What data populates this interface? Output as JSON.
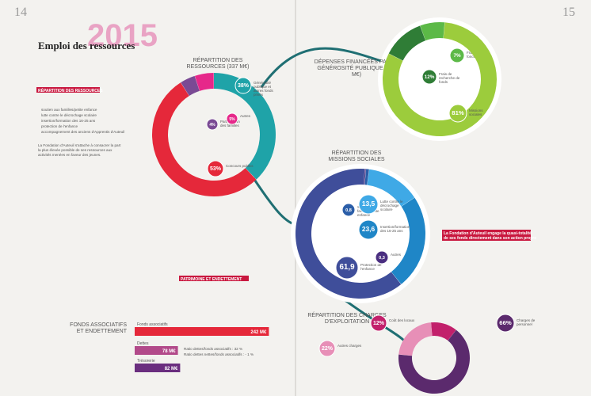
{
  "pages": [
    "14",
    "15"
  ],
  "header": {
    "year": "2015",
    "title": "Emploi des ressources"
  },
  "left_column": {
    "heading": "RÉPARTITION DES RESSOURCES",
    "bullets": [
      "soutien aux familles/petite enfance",
      "lutte contre le décrochage scolaire",
      "insertion/formation des 16-25 ans",
      "protection de l'enfance",
      "accompagnement des anciens d'Apprentis d'Auteuil"
    ],
    "paragraph": "La Fondation d'Auteuil s'attache à consacrer la part la plus élevée possible de ses ressources aux activités menées en faveur des jeunes."
  },
  "right_column": {
    "heading": "La Fondation d'Auteuil engage la quasi-totalité de ses fonds directement dans son action propre"
  },
  "patrimoine": {
    "heading": "PATRIMOINE ET ENDETTEMENT"
  },
  "ressources": {
    "title": "RÉPARTITION DES RESSOURCES (337 M€)",
    "segments": [
      {
        "label": "Générosité publique et autres fonds privés",
        "value": 38,
        "value_label": "38%",
        "color": "#1fa3a8"
      },
      {
        "label": "Concours publics",
        "value": 53,
        "value_label": "53%",
        "color": "#e5283a"
      },
      {
        "label": "Participation des familles",
        "value": 4,
        "value_label": "4%",
        "color": "#7a4a94"
      },
      {
        "label": "Autres",
        "value": 5,
        "value_label": "5%",
        "color": "#e6288a"
      }
    ]
  },
  "generosite": {
    "title": "DÉPENSES FINANCÉES PAR LA GÉNÉROSITÉ PUBLIQUE (121 M€)",
    "segments": [
      {
        "label": "Frais de fonctionnement",
        "value": 7,
        "value_label": "7%",
        "color": "#5cb947"
      },
      {
        "label": "Missions sociales",
        "value": 81,
        "value_label": "81%",
        "color": "#9ccc3c"
      },
      {
        "label": "Frais de recherche de fonds",
        "value": 12,
        "value_label": "12%",
        "color": "#2f7d36"
      }
    ]
  },
  "missions": {
    "title": "RÉPARTITION DES MISSIONS SOCIALES",
    "segments": [
      {
        "label": "Soutien aux familles/petite enfance",
        "value": 0.8,
        "value_label": "0,8",
        "color": "#2b5ea8"
      },
      {
        "label": "Lutte contre le décrochage scolaire",
        "value": 13.5,
        "value_label": "13,5",
        "color": "#3fa9e6"
      },
      {
        "label": "Insertion/formation des 16-25 ans",
        "value": 23.6,
        "value_label": "23,6",
        "color": "#1f86c7"
      },
      {
        "label": "Protection de l'enfance",
        "value": 61.9,
        "value_label": "61,9",
        "color": "#3f4e9a"
      },
      {
        "label": "Autres",
        "value": 0.3,
        "value_label": "0,3",
        "color": "#4a2e80"
      }
    ]
  },
  "charges": {
    "title": "RÉPARTITION DES CHARGES D'EXPLOITATION",
    "segments": [
      {
        "label": "Coût des locaux",
        "value": 12,
        "value_label": "12%",
        "color": "#c2206b"
      },
      {
        "label": "Charges de personnel",
        "value": 66,
        "value_label": "66%",
        "color": "#5b2a6d"
      },
      {
        "label": "Autres charges",
        "value": 22,
        "value_label": "22%",
        "color": "#e78fb7"
      }
    ]
  },
  "bars": {
    "title": "FONDS ASSOCIATIFS ET ENDETTEMENT",
    "items": [
      {
        "label": "Fonds associatifs",
        "value": 242,
        "value_label": "242 M€",
        "color": "#e5283a"
      },
      {
        "label": "Dettes",
        "value": 78,
        "value_label": "78 M€",
        "color": "#b24a8a"
      },
      {
        "label": "Trésorerie",
        "value": 82,
        "value_label": "82 M€",
        "color": "#6a2e7f"
      }
    ],
    "notes": [
      "Ratio dettes/fonds associatifs : 32 %",
      "Ratio dettes nettes/fonds associatifs : - 1 %"
    ]
  }
}
